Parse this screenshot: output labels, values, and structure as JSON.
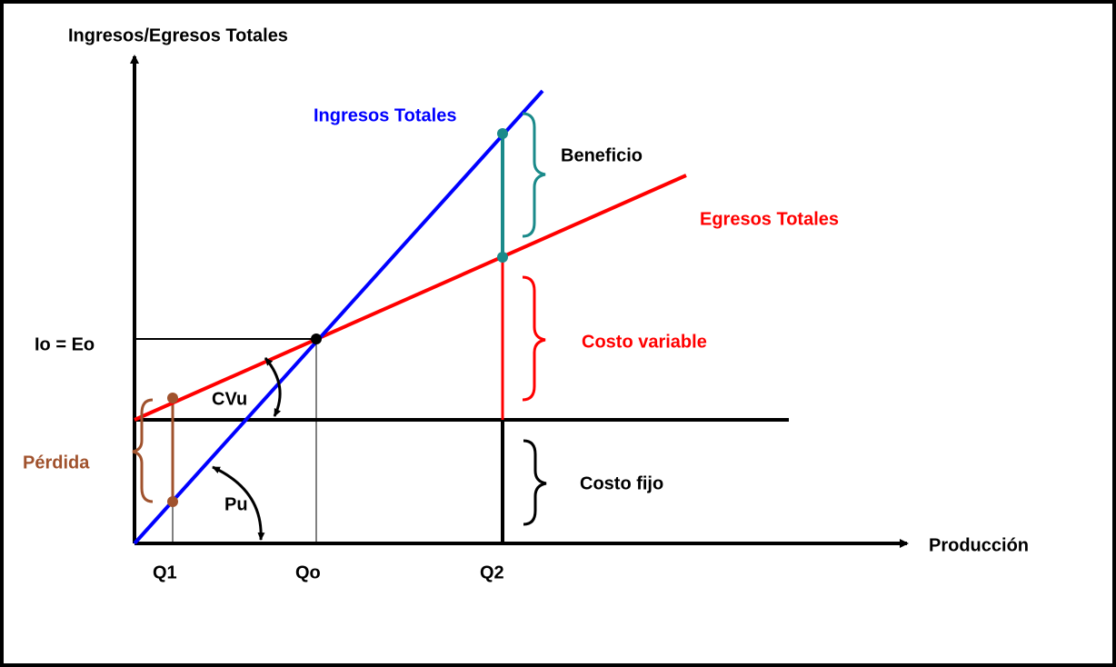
{
  "axes": {
    "y_label": "Ingresos/Egresos Totales",
    "x_label": "Producción"
  },
  "lines": {
    "revenue": "Ingresos Totales",
    "cost": "Egresos Totales"
  },
  "labels": {
    "profit": "Beneficio",
    "variable_cost": "Costo variable",
    "fixed_cost": "Costo fijo",
    "loss": "Pérdida",
    "unit_variable_cost": "CVu",
    "unit_price": "Pu",
    "break_even": "Io = Eo"
  },
  "x_marks": [
    "Q1",
    "Qo",
    "Q2"
  ]
}
